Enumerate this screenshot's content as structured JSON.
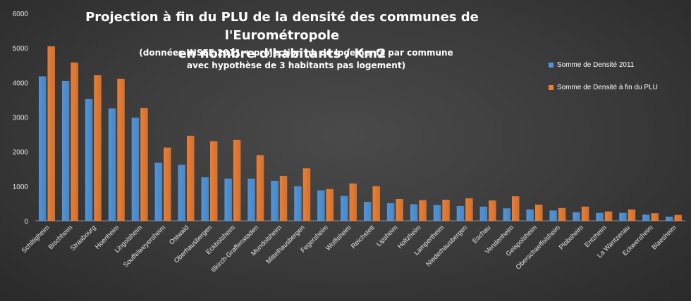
{
  "chart_data": {
    "type": "bar",
    "title": "Projection à fin du PLU de la densité des communes de l'Eurométropole en nombre d'habitants / Km2",
    "title_line1": "Projection  à fin du PLU de la densité  des communes  de l'Eurométropole",
    "title_line2": "en nombre  d'habitants  / Km2",
    "subtitle_line1": "(données INSEE 2011 + projection nb de logements par commune",
    "subtitle_line2": "avec hypothèse de 3 habitants  pas logement)",
    "ylim": [
      0,
      6000
    ],
    "yticks": [
      "0",
      "1000",
      "2000",
      "3000",
      "4000",
      "5000",
      "6000"
    ],
    "grid": false,
    "legend_position": "top-right",
    "categories": [
      "Schiltigheim",
      "Bischheim",
      "Strasbourg",
      "Hoenheim",
      "Lingolsheim",
      "Souffelweyersheim",
      "Ostwald",
      "Oberhausbergen",
      "Eckbolsheim",
      "Illkirch-Graffenstaden",
      "Mundolsheim",
      "Mittelhausbergen",
      "Fegersheim",
      "Wolfisheim",
      "Reichstett",
      "Lipsheim",
      "Holtzheim",
      "Lampertheim",
      "Niederhausbergen",
      "Eschau",
      "Vendenheim",
      "Geispolsheim",
      "Oberschaeffolsheim",
      "Plobsheim",
      "Entzheim",
      "La Wantzenau",
      "Eckwersheim",
      "Blaesheim"
    ],
    "series": [
      {
        "name": "Somme de Densité 2011",
        "color": "#4f95dc",
        "values": [
          4180,
          4050,
          3520,
          3250,
          2980,
          1680,
          1620,
          1260,
          1220,
          1220,
          1160,
          1000,
          880,
          720,
          550,
          510,
          480,
          460,
          430,
          410,
          360,
          330,
          300,
          250,
          230,
          230,
          180,
          120
        ]
      },
      {
        "name": "Somme de Densité à fin du PLU",
        "color": "#ed7d31",
        "values": [
          5050,
          4580,
          4210,
          4110,
          3260,
          2120,
          2460,
          2300,
          2340,
          1900,
          1300,
          1520,
          920,
          1080,
          1000,
          630,
          600,
          610,
          650,
          590,
          710,
          470,
          370,
          410,
          270,
          330,
          220,
          170
        ]
      }
    ]
  }
}
